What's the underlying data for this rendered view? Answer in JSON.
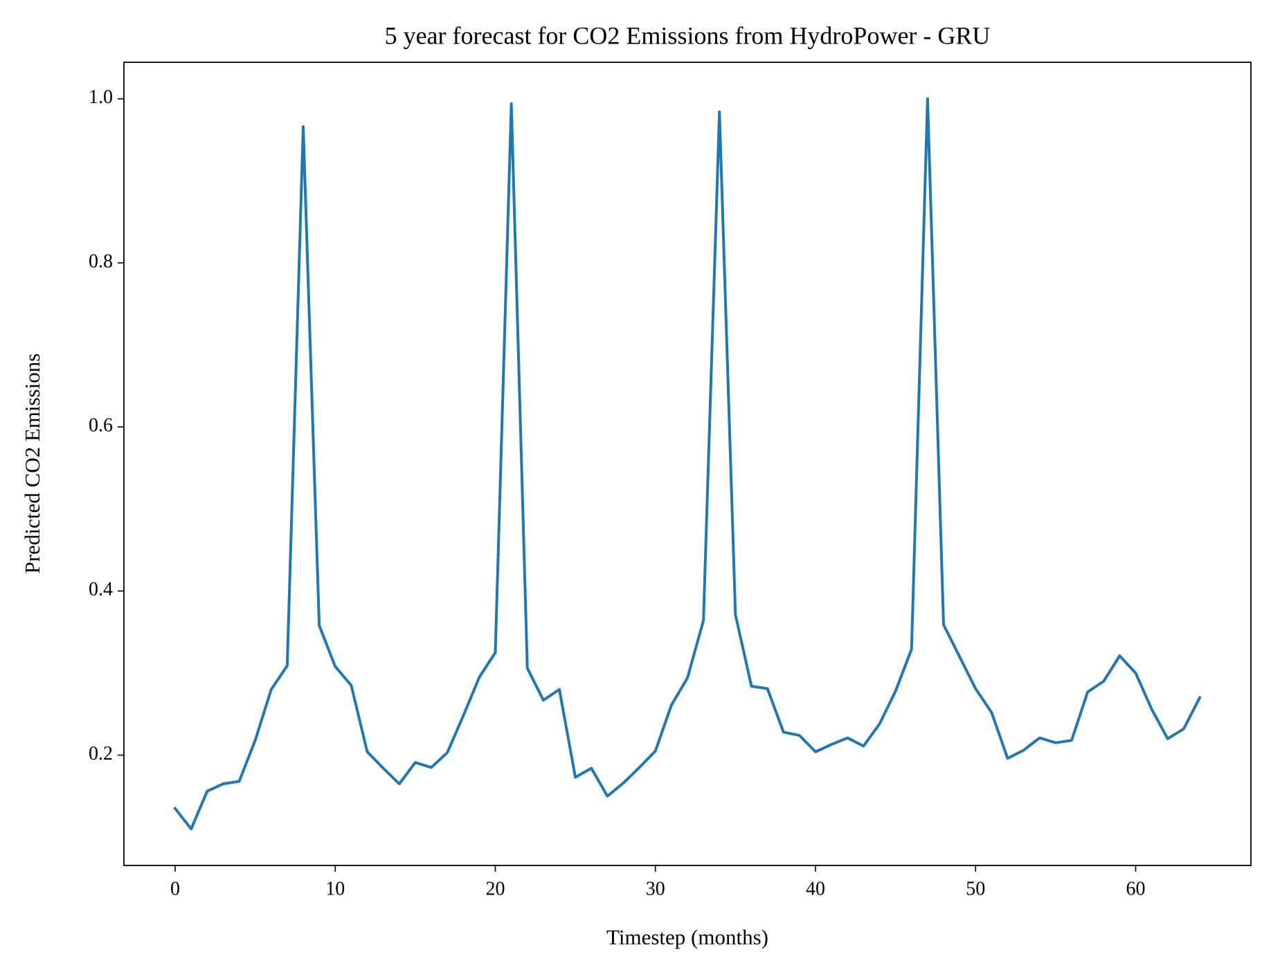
{
  "chart_data": {
    "type": "line",
    "title": "5 year forecast for CO2 Emissions from HydroPower - GRU",
    "xlabel": "Timestep (months)",
    "ylabel": "Predicted CO2 Emissions",
    "x": [
      0,
      1,
      2,
      3,
      4,
      5,
      6,
      7,
      8,
      9,
      10,
      11,
      12,
      13,
      14,
      15,
      16,
      17,
      18,
      19,
      20,
      21,
      22,
      23,
      24,
      25,
      26,
      27,
      28,
      29,
      30,
      31,
      32,
      33,
      34,
      35,
      36,
      37,
      38,
      39,
      40,
      41,
      42,
      43,
      44,
      45,
      46,
      47,
      48,
      49,
      50,
      51,
      52,
      53,
      54,
      55,
      56,
      57,
      58,
      59,
      60,
      61,
      62,
      63,
      64
    ],
    "values": [
      0.135,
      0.11,
      0.156,
      0.165,
      0.168,
      0.218,
      0.28,
      0.309,
      0.966,
      0.358,
      0.308,
      0.285,
      0.204,
      0.184,
      0.165,
      0.191,
      0.185,
      0.203,
      0.248,
      0.295,
      0.325,
      0.994,
      0.306,
      0.267,
      0.28,
      0.173,
      0.184,
      0.15,
      0.166,
      0.185,
      0.205,
      0.261,
      0.294,
      0.364,
      0.984,
      0.371,
      0.284,
      0.281,
      0.228,
      0.224,
      0.204,
      0.213,
      0.221,
      0.211,
      0.238,
      0.278,
      0.329,
      1.0,
      0.359,
      0.32,
      0.281,
      0.252,
      0.196,
      0.206,
      0.221,
      0.215,
      0.218,
      0.277,
      0.29,
      0.321,
      0.3,
      0.256,
      0.22,
      0.232,
      0.27
    ],
    "color": "#1f77b4",
    "xlim": [
      -3.2,
      67.2
    ],
    "ylim": [
      0.0655,
      1.0445
    ],
    "xticks": [
      0,
      10,
      20,
      30,
      40,
      50,
      60
    ],
    "yticks": [
      0.2,
      0.4,
      0.6,
      0.8,
      {
        "value": 1,
        "label": "1.0"
      }
    ],
    "grid": false
  }
}
